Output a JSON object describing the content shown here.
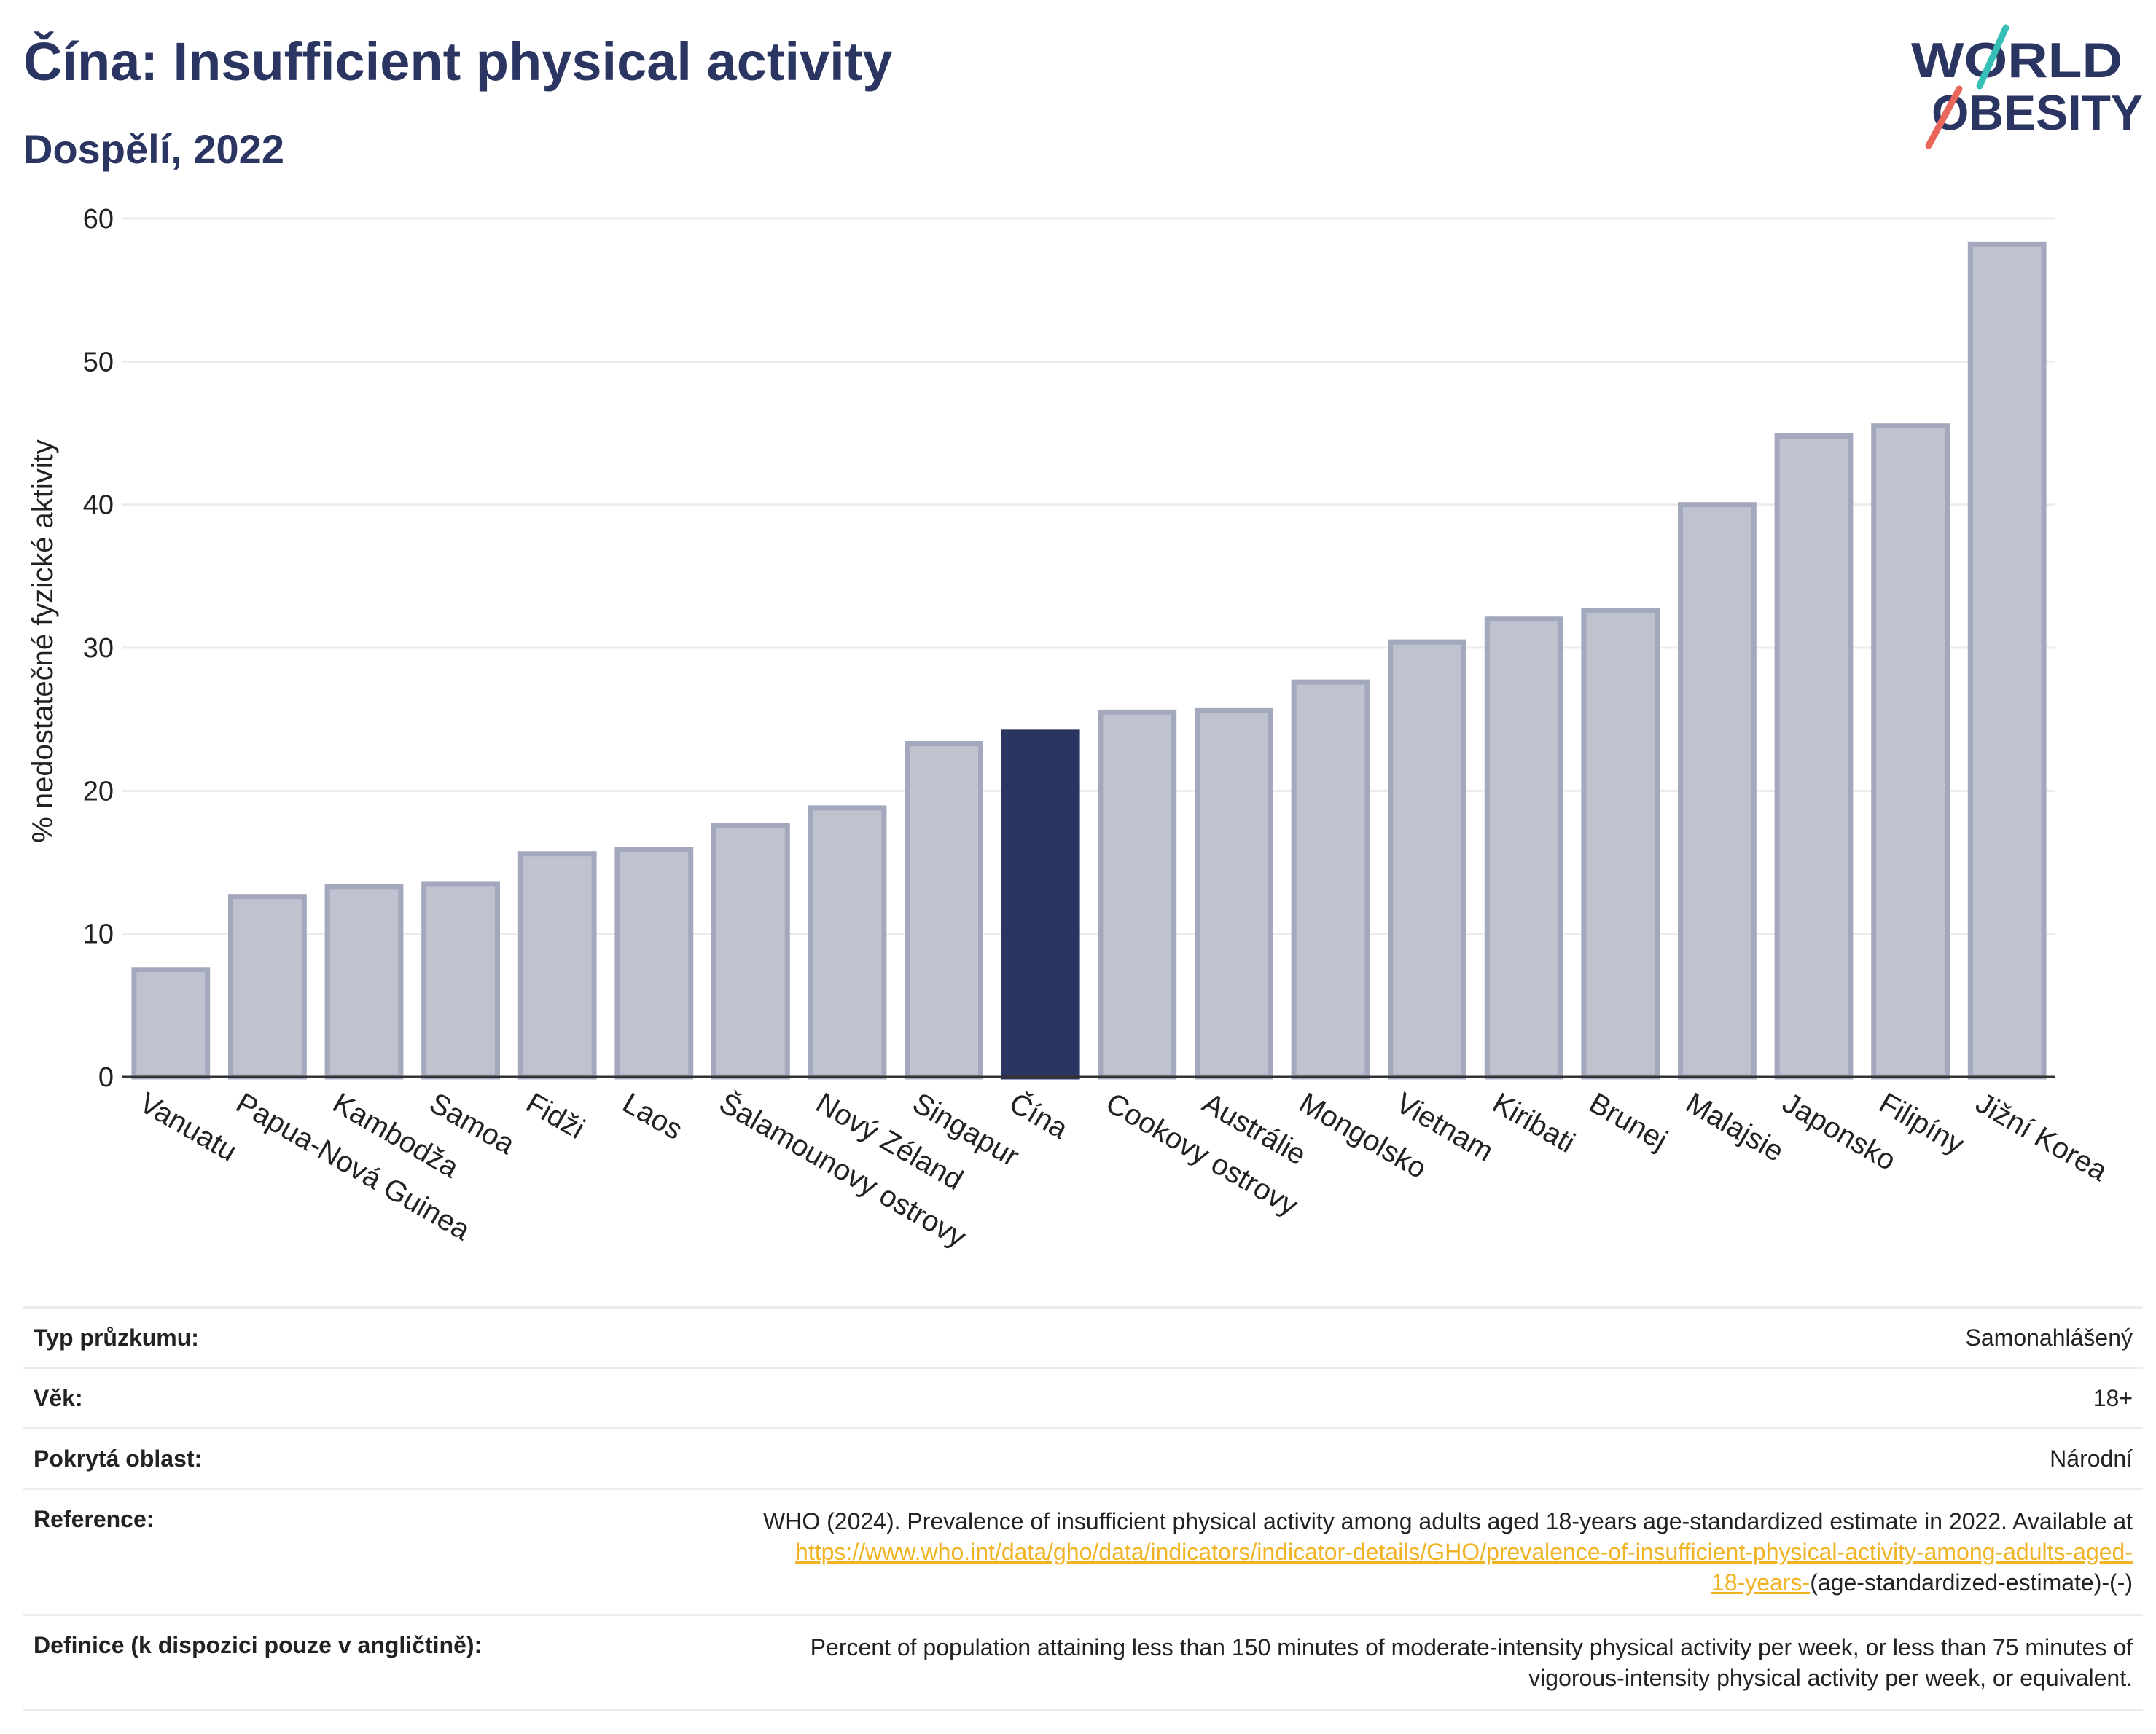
{
  "header": {
    "title": "Čína: Insufficient physical activity",
    "subtitle": "Dospělí, 2022"
  },
  "logo": {
    "line1": "WORLD",
    "line2": "OBESITY"
  },
  "colors": {
    "highlight": "#2b3561",
    "bar": "#bfc3d0",
    "bar_border": "#a3a8bd",
    "grid": "#ececec",
    "link": "#f0b323"
  },
  "chart_data": {
    "type": "bar",
    "ylabel": "% nedostatečné fyzické aktivity",
    "ylim": [
      0,
      60
    ],
    "yticks": [
      0,
      10,
      20,
      30,
      40,
      50,
      60
    ],
    "grid": true,
    "highlight": "Čína",
    "categories": [
      "Vanuatu",
      "Papua-Nová Guinea",
      "Kambodža",
      "Samoa",
      "Fidži",
      "Laos",
      "Šalamounovy ostrovy",
      "Nový Zéland",
      "Singapur",
      "Čína",
      "Cookovy ostrovy",
      "Austrálie",
      "Mongolsko",
      "Vietnam",
      "Kiribati",
      "Brunej",
      "Malajsie",
      "Japonsko",
      "Filipíny",
      "Jižní Korea"
    ],
    "values": [
      7.5,
      12.6,
      13.3,
      13.5,
      15.6,
      15.9,
      17.6,
      18.8,
      23.3,
      24.1,
      25.5,
      25.6,
      27.6,
      30.4,
      32.0,
      32.6,
      40.0,
      44.8,
      45.5,
      58.2
    ]
  },
  "meta": {
    "survey_type": {
      "label": "Typ průzkumu:",
      "value": "Samonahlášený"
    },
    "age": {
      "label": "Věk:",
      "value": "18+"
    },
    "area": {
      "label": "Pokrytá oblast:",
      "value": "Národní"
    },
    "reference": {
      "label": "Reference:",
      "text": "WHO (2024). Prevalence of insufficient physical activity among adults aged 18-years age-standardized estimate in 2022. Available at",
      "link_line1": "https://www.who.int/data/gho/data/indicators/indicator-details/GHO/prevalence-of-insufficient-physical-activity-among-adults-aged-",
      "link_line2": "18-years-",
      "suffix": "(age-standardized-estimate)-(-)"
    },
    "definition": {
      "label": "Definice (k dispozici pouze v angličtině):",
      "line1": "Percent of population attaining less than 150 minutes of moderate-intensity physical activity per week, or less than 75 minutes of",
      "line2": "vigorous-intensity physical activity per week, or equivalent."
    }
  }
}
